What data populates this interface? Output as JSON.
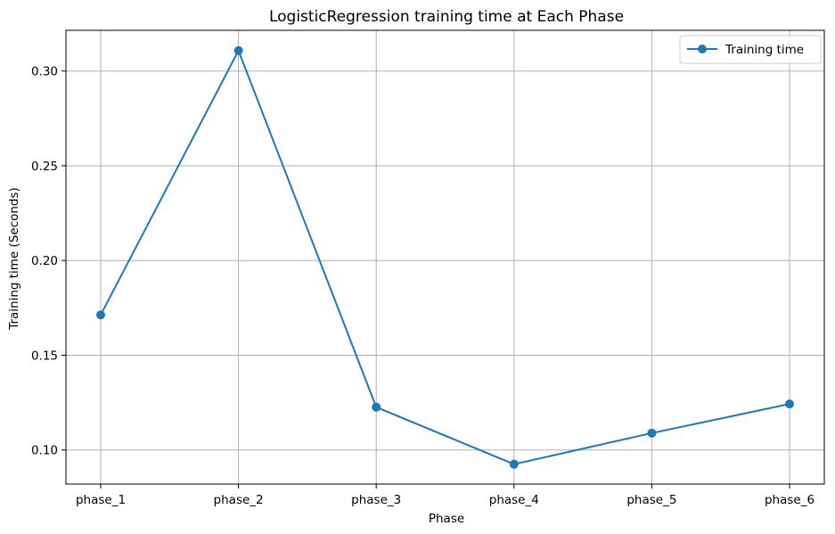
{
  "chart_data": {
    "type": "line",
    "title": "LogisticRegression training time at Each Phase",
    "xlabel": "Phase",
    "ylabel": "Training time (Seconds)",
    "categories": [
      "phase_1",
      "phase_2",
      "phase_3",
      "phase_4",
      "phase_5",
      "phase_6"
    ],
    "series": [
      {
        "name": "Training time",
        "values": [
          0.1713,
          0.3108,
          0.1226,
          0.0925,
          0.1089,
          0.1243
        ],
        "color": "#1f77b4",
        "marker": "circle"
      }
    ],
    "ylim": [
      0.082,
      0.3215
    ],
    "yticks": [
      0.1,
      0.15,
      0.2,
      0.25,
      0.3
    ],
    "ytick_labels": [
      "0.10",
      "0.15",
      "0.20",
      "0.25",
      "0.30"
    ],
    "grid": true,
    "legend_position": "top-right"
  }
}
